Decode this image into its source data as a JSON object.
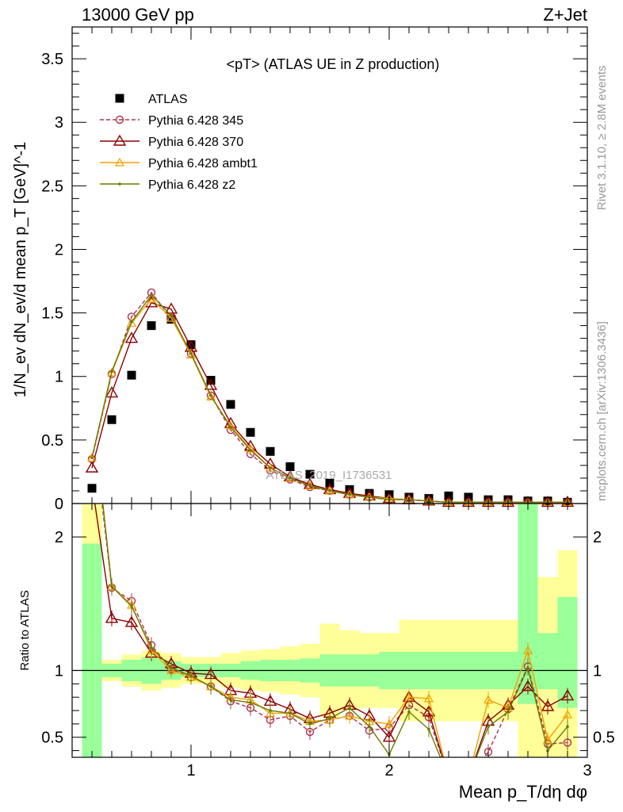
{
  "header": {
    "left": "13000 GeV pp",
    "right": "Z+Jet"
  },
  "side": {
    "rivet": "Rivet 3.1.10, ≥ 2.8M events",
    "mcplots": "mcplots.cern.ch [arXiv:1306.3436]"
  },
  "watermark": "ATLAS_2019_I1736531",
  "chart_data": [
    {
      "type": "scatter",
      "title": "<pT> (ATLAS UE in Z production)",
      "ylabel": "1/N_ev dN_ev/d mean p_T [GeV]^-1",
      "xlim": [
        0.4,
        3.0
      ],
      "ylim": [
        0,
        3.75
      ],
      "yticks": [
        "0",
        "0.5",
        "1",
        "1.5",
        "2",
        "2.5",
        "3",
        "3.5"
      ],
      "legend_position": "top-left",
      "x": [
        0.5,
        0.6,
        0.7,
        0.8,
        0.9,
        1.0,
        1.1,
        1.2,
        1.3,
        1.4,
        1.5,
        1.6,
        1.7,
        1.8,
        1.9,
        2.0,
        2.1,
        2.2,
        2.3,
        2.4,
        2.5,
        2.6,
        2.7,
        2.8,
        2.9
      ],
      "series": [
        {
          "name": "ATLAS",
          "style": "marker",
          "color": "#000000",
          "values": [
            0.12,
            0.66,
            1.01,
            1.4,
            1.45,
            1.25,
            0.97,
            0.78,
            0.56,
            0.41,
            0.29,
            0.23,
            0.16,
            0.11,
            0.08,
            0.07,
            0.05,
            0.04,
            0.06,
            0.05,
            0.03,
            0.03,
            0.02,
            0.02,
            0.01
          ]
        },
        {
          "name": "Pythia 6.428 345",
          "style": "dashed-circle",
          "color": "#b03050",
          "values": [
            0.35,
            1.02,
            1.47,
            1.66,
            1.46,
            1.18,
            0.85,
            0.58,
            0.39,
            0.26,
            0.19,
            0.13,
            0.1,
            0.07,
            0.05,
            0.03,
            0.03,
            0.02,
            0.01,
            0.01,
            0.01,
            0.01,
            0.01,
            0.01,
            0.01
          ]
        },
        {
          "name": "Pythia 6.428 370",
          "style": "solid-triangle",
          "color": "#8b0000",
          "values": [
            0.28,
            0.87,
            1.3,
            1.58,
            1.53,
            1.23,
            0.93,
            0.63,
            0.45,
            0.31,
            0.21,
            0.15,
            0.11,
            0.08,
            0.06,
            0.04,
            0.03,
            0.02,
            0.01,
            0.01,
            0.01,
            0.01,
            0.01,
            0.01,
            0.01
          ]
        },
        {
          "name": "Pythia 6.428 ambt1",
          "style": "solid-small-triangle",
          "color": "#f0a000",
          "values": [
            0.36,
            1.03,
            1.42,
            1.61,
            1.46,
            1.17,
            0.84,
            0.61,
            0.43,
            0.28,
            0.2,
            0.14,
            0.1,
            0.07,
            0.05,
            0.04,
            0.03,
            0.02,
            0.01,
            0.01,
            0.01,
            0.01,
            0.01,
            0.01,
            0.01
          ]
        },
        {
          "name": "Pythia 6.428 z2",
          "style": "solid-dot",
          "color": "#6b7a00",
          "values": [
            0.36,
            1.04,
            1.43,
            1.64,
            1.48,
            1.18,
            0.85,
            0.6,
            0.42,
            0.28,
            0.2,
            0.14,
            0.1,
            0.07,
            0.05,
            0.03,
            0.03,
            0.02,
            0.01,
            0.01,
            0.01,
            0.01,
            0.01,
            0.01,
            0.01
          ]
        }
      ]
    },
    {
      "type": "line",
      "ylabel": "Ratio to ATLAS",
      "xlabel": "Mean p_T/dη dφ",
      "xlim": [
        0.4,
        3.0
      ],
      "ylim": [
        0.35,
        2.25
      ],
      "xticks": [
        "1",
        "2",
        "3"
      ],
      "yticks": [
        "0.5",
        "1",
        "2"
      ],
      "x": [
        0.5,
        0.6,
        0.7,
        0.8,
        0.9,
        1.0,
        1.1,
        1.2,
        1.3,
        1.4,
        1.5,
        1.6,
        1.7,
        1.8,
        1.9,
        2.0,
        2.1,
        2.2,
        2.3,
        2.4,
        2.5,
        2.6,
        2.7,
        2.8,
        2.9
      ],
      "band_inner": {
        "color": "#99ff99",
        "low": [
          0.1,
          0.95,
          0.92,
          0.9,
          0.93,
          0.95,
          0.95,
          0.95,
          0.93,
          0.92,
          0.92,
          0.91,
          0.88,
          0.88,
          0.88,
          0.86,
          0.86,
          0.86,
          0.86,
          0.86,
          0.86,
          0.86,
          0.75,
          0.86,
          0.72
        ],
        "high": [
          1.95,
          1.05,
          1.08,
          1.1,
          1.07,
          1.05,
          1.05,
          1.05,
          1.07,
          1.08,
          1.08,
          1.09,
          1.12,
          1.12,
          1.12,
          1.14,
          1.14,
          1.14,
          1.14,
          1.14,
          1.14,
          1.14,
          2.3,
          1.28,
          1.55
        ]
      },
      "band_outer": {
        "color": "#ffff99",
        "low": [
          0.1,
          0.92,
          0.88,
          0.85,
          0.87,
          0.9,
          0.9,
          0.87,
          0.85,
          0.84,
          0.82,
          0.8,
          0.65,
          0.7,
          0.72,
          0.72,
          0.62,
          0.62,
          0.62,
          0.62,
          0.62,
          0.62,
          0.1,
          0.3,
          0.1
        ],
        "high": [
          2.5,
          1.08,
          1.12,
          1.15,
          1.13,
          1.1,
          1.1,
          1.13,
          1.15,
          1.16,
          1.18,
          1.2,
          1.35,
          1.3,
          1.28,
          1.28,
          1.38,
          1.38,
          1.38,
          1.38,
          1.38,
          1.38,
          2.5,
          1.7,
          1.9
        ]
      },
      "series": [
        {
          "name": "Pythia 6.428 345",
          "color": "#b03050",
          "values": [
            2.9,
            1.62,
            1.52,
            1.19,
            1.01,
            0.95,
            0.88,
            0.77,
            0.72,
            0.63,
            0.66,
            0.54,
            0.63,
            0.66,
            0.55,
            0.57,
            0.74,
            0.65,
            0.2,
            0.2,
            0.39,
            0.71,
            1.03,
            0.45,
            0.46
          ]
        },
        {
          "name": "Pythia 6.428 370",
          "color": "#8b0000",
          "values": [
            2.4,
            1.39,
            1.36,
            1.13,
            1.05,
            0.98,
            0.97,
            0.85,
            0.83,
            0.77,
            0.71,
            0.64,
            0.68,
            0.74,
            0.66,
            0.5,
            0.8,
            0.69,
            0.2,
            0.2,
            0.62,
            0.74,
            0.88,
            0.73,
            0.81
          ]
        },
        {
          "name": "Pythia 6.428 ambt1",
          "color": "#f0a000",
          "values": [
            3.0,
            1.63,
            1.49,
            1.15,
            1.0,
            0.95,
            0.88,
            0.8,
            0.78,
            0.68,
            0.68,
            0.62,
            0.63,
            0.66,
            0.62,
            0.6,
            0.8,
            0.79,
            0.2,
            0.2,
            0.78,
            0.72,
            1.15,
            0.48,
            0.67
          ]
        },
        {
          "name": "Pythia 6.428 z2",
          "color": "#6b7a00",
          "values": [
            3.0,
            1.63,
            1.48,
            1.17,
            1.02,
            0.96,
            0.88,
            0.78,
            0.76,
            0.7,
            0.68,
            0.6,
            0.64,
            0.72,
            0.58,
            0.37,
            0.69,
            0.56,
            0.2,
            0.2,
            0.58,
            0.69,
            1.02,
            0.4,
            0.58
          ]
        }
      ]
    }
  ]
}
